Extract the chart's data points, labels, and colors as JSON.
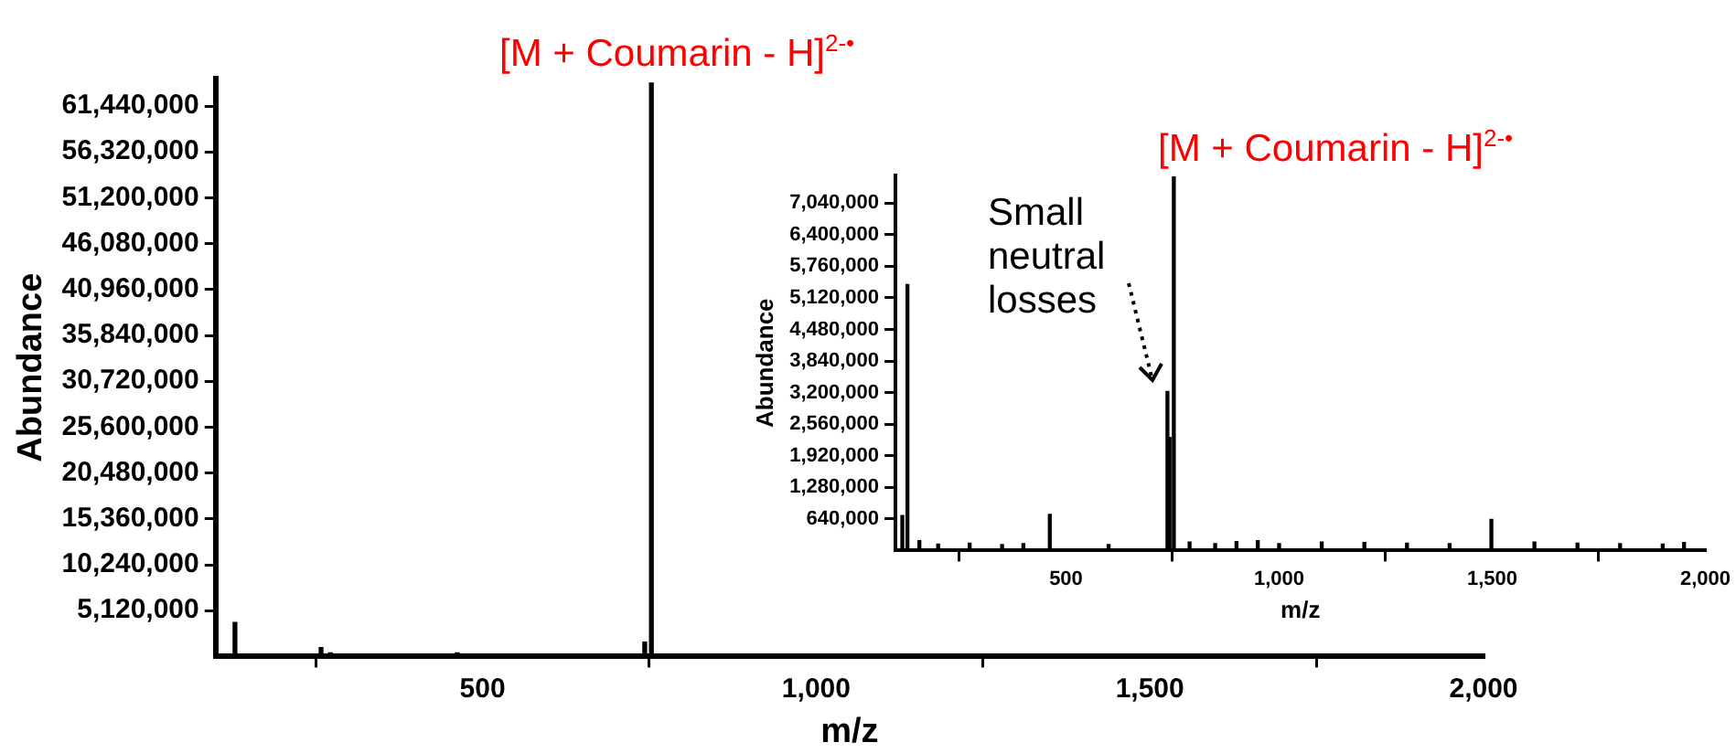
{
  "chart_data": [
    {
      "type": "bar",
      "xlabel": "m/z",
      "ylabel": "Abundance",
      "xlim": [
        100,
        2000
      ],
      "ylim": [
        0,
        64500000
      ],
      "xticks": [
        {
          "value": 500,
          "label": "500"
        },
        {
          "value": 1000,
          "label": "1,000"
        },
        {
          "value": 1500,
          "label": "1,500"
        },
        {
          "value": 2000,
          "label": "2,000"
        }
      ],
      "yticks": [
        {
          "value": 5120000,
          "label": "5,120,000"
        },
        {
          "value": 10240000,
          "label": "10,240,000"
        },
        {
          "value": 15360000,
          "label": "15,360,000"
        },
        {
          "value": 20480000,
          "label": "20,480,000"
        },
        {
          "value": 25600000,
          "label": "25,600,000"
        },
        {
          "value": 30720000,
          "label": "30,720,000"
        },
        {
          "value": 35840000,
          "label": "35,840,000"
        },
        {
          "value": 40960000,
          "label": "40,960,000"
        },
        {
          "value": 46080000,
          "label": "46,080,000"
        },
        {
          "value": 51200000,
          "label": "51,200,000"
        },
        {
          "value": 56320000,
          "label": "56,320,000"
        },
        {
          "value": 61440000,
          "label": "61,440,000"
        }
      ],
      "series": [
        {
          "color": "#000000",
          "x": [
            129,
            258,
            272,
            462,
            743,
            753
          ],
          "values": [
            3800000,
            1000000,
            400000,
            400000,
            1600000,
            64000000
          ]
        }
      ],
      "annotations": [
        "[M + Coumarin - H]$^{2-•}$"
      ],
      "grid": false,
      "legend": false
    },
    {
      "type": "bar",
      "xlabel": "m/z",
      "ylabel": "Abundance",
      "xlim": [
        100,
        2000
      ],
      "ylim": [
        0,
        7600000
      ],
      "xticks": [
        {
          "value": 500,
          "label": "500"
        },
        {
          "value": 1000,
          "label": "1,000"
        },
        {
          "value": 1500,
          "label": "1,500"
        },
        {
          "value": 2000,
          "label": "2,000"
        }
      ],
      "yticks": [
        {
          "value": 640000,
          "label": "640,000"
        },
        {
          "value": 1280000,
          "label": "1,280,000"
        },
        {
          "value": 1920000,
          "label": "1,920,000"
        },
        {
          "value": 2560000,
          "label": "2,560,000"
        },
        {
          "value": 3200000,
          "label": "3,200,000"
        },
        {
          "value": 3840000,
          "label": "3,840,000"
        },
        {
          "value": 4480000,
          "label": "4,480,000"
        },
        {
          "value": 5120000,
          "label": "5,120,000"
        },
        {
          "value": 5760000,
          "label": "5,760,000"
        },
        {
          "value": 6400000,
          "label": "6,400,000"
        },
        {
          "value": 7040000,
          "label": "7,040,000"
        }
      ],
      "series": [
        {
          "color": "#000000",
          "x": [
            116,
            128,
            156,
            200,
            274,
            350,
            400,
            462,
            600,
            738,
            743,
            753,
            790,
            850,
            900,
            950,
            1000,
            1100,
            1200,
            1300,
            1400,
            1498,
            1599,
            1700,
            1800,
            1900,
            1950
          ],
          "values": [
            710000,
            5390000,
            200000,
            130000,
            150000,
            120000,
            140000,
            730000,
            120000,
            3220000,
            2290000,
            7570000,
            170000,
            140000,
            180000,
            200000,
            140000,
            170000,
            160000,
            150000,
            140000,
            630000,
            170000,
            150000,
            140000,
            130000,
            160000
          ]
        }
      ],
      "annotations": [
        "[M + Coumarin - H]$^{2-•}$",
        "Small neutral losses"
      ],
      "grid": false,
      "legend": false
    }
  ]
}
